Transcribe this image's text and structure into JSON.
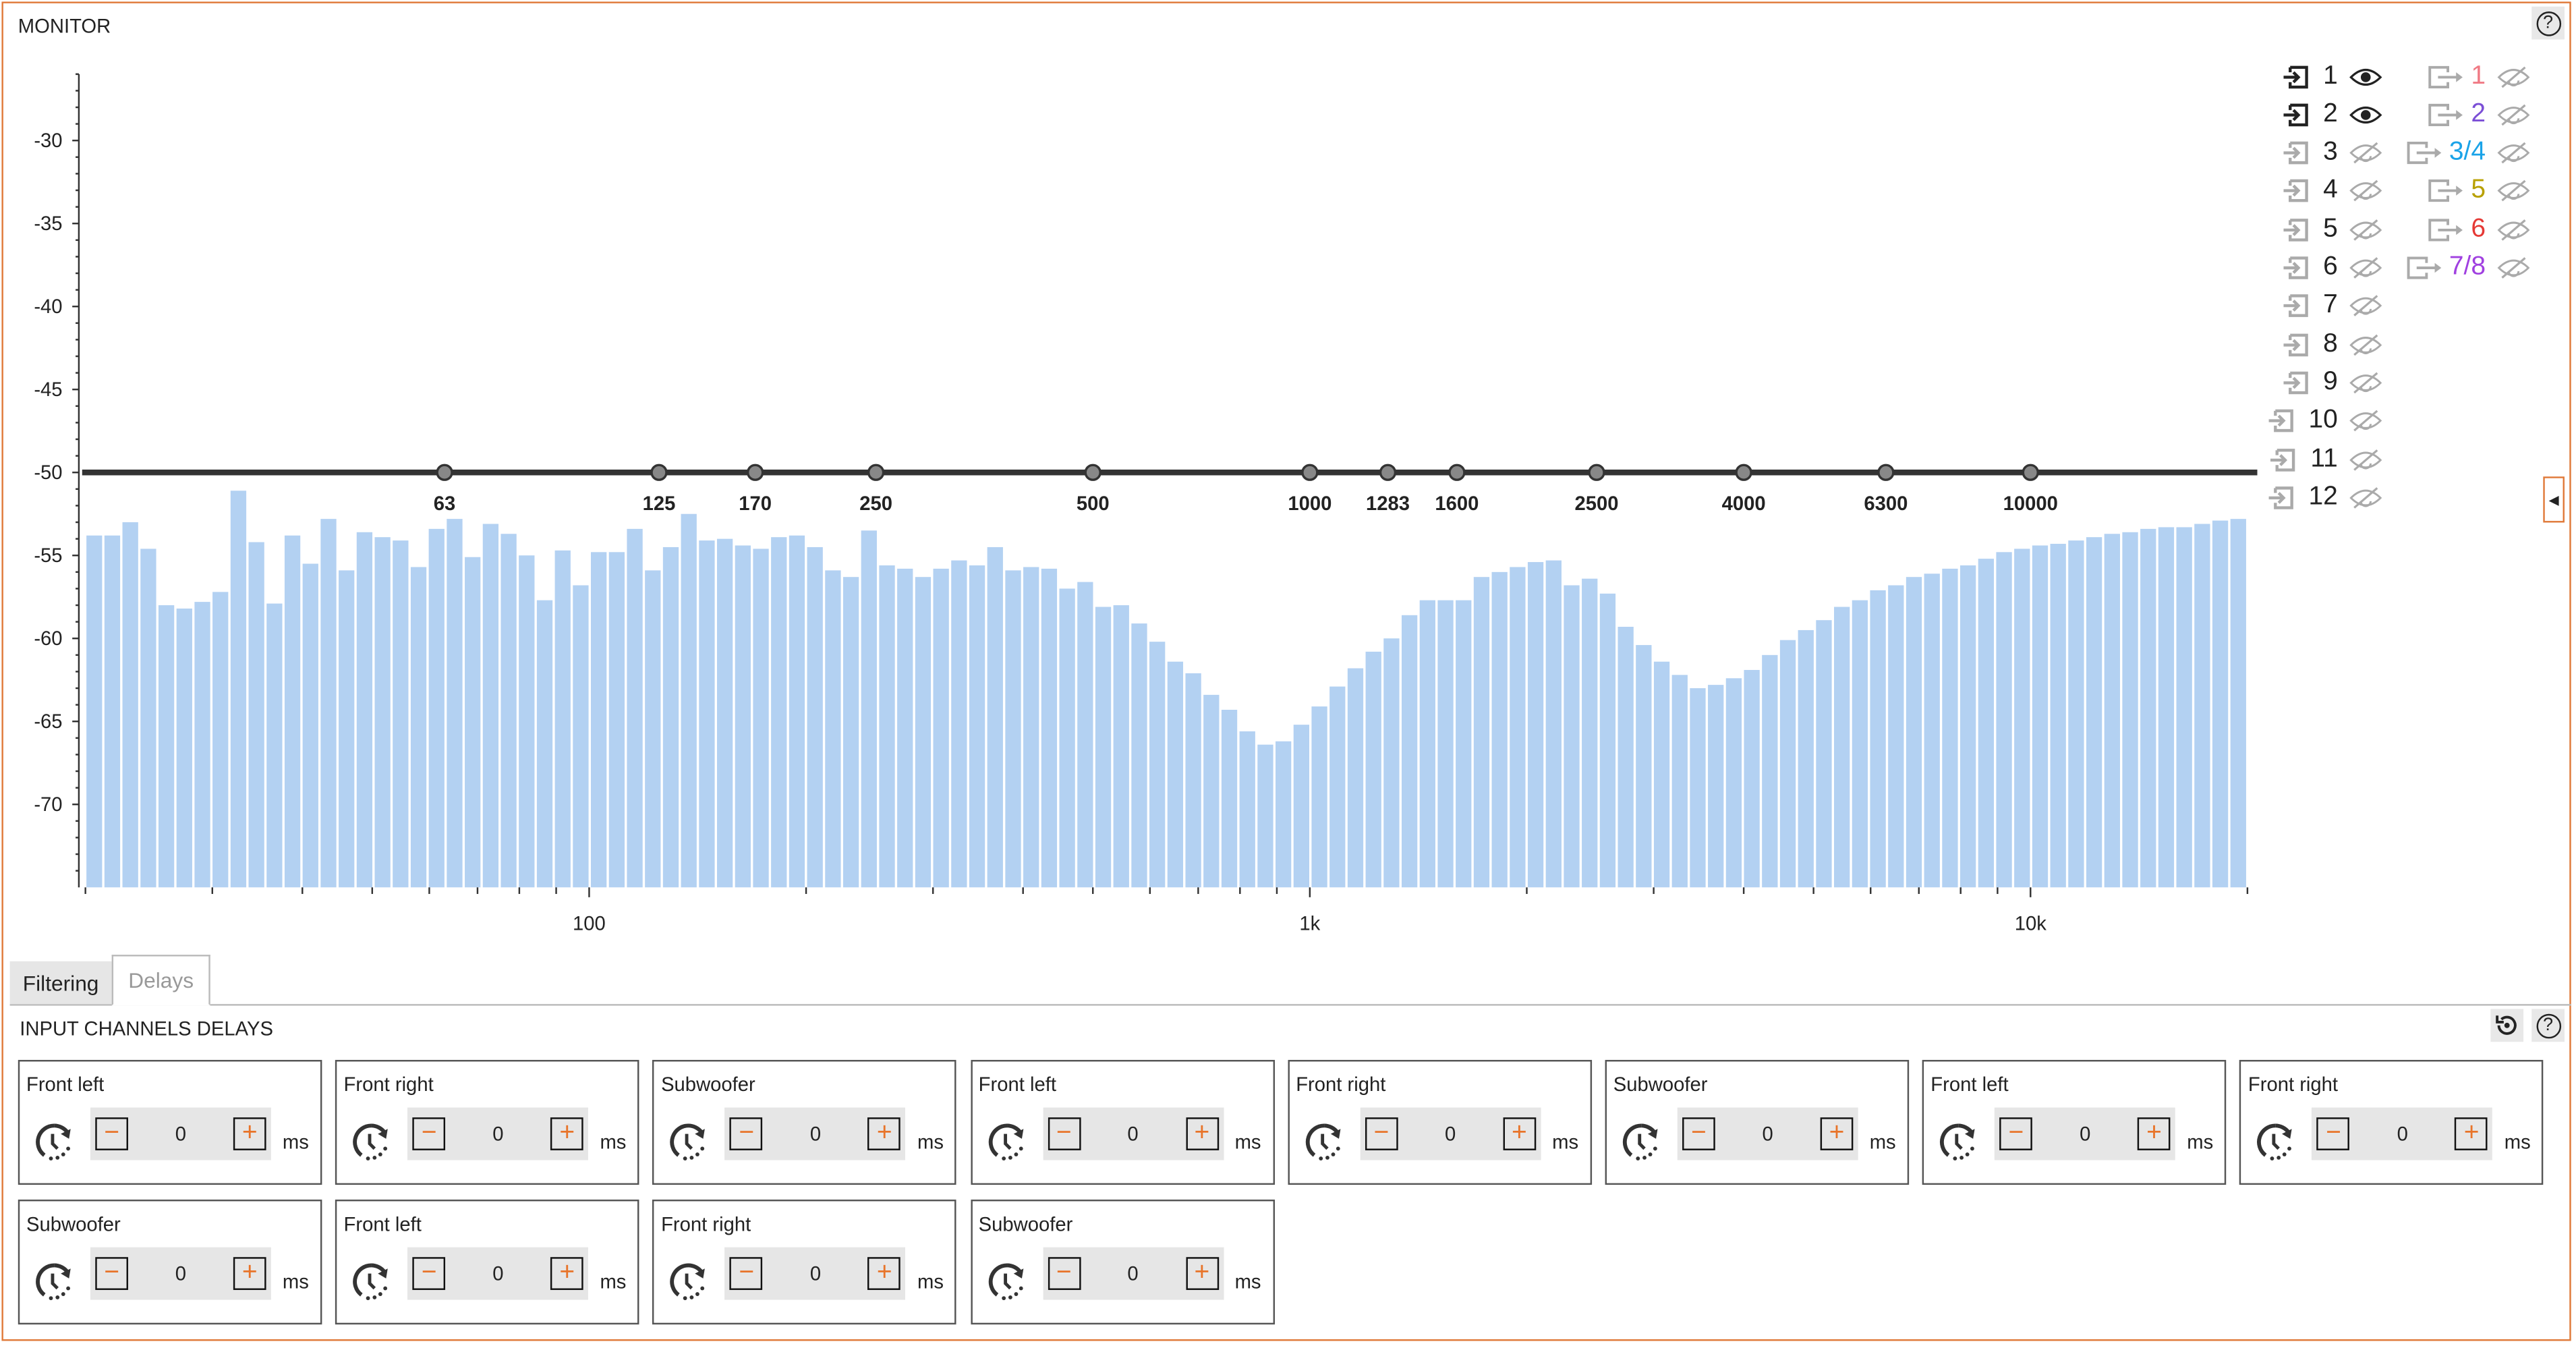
{
  "monitor": {
    "title": "MONITOR",
    "help_icon": "question-circle-icon"
  },
  "chart_data": {
    "type": "bar",
    "xscale": "log",
    "xlim": [
      20,
      20000
    ],
    "ylim": [
      -75,
      -25
    ],
    "y_ticks": [
      -30,
      -35,
      -40,
      -45,
      -50,
      -55,
      -60,
      -65,
      -70
    ],
    "x_tick_labels": [
      {
        "v": 100,
        "t": "100"
      },
      {
        "v": 1000,
        "t": "1k"
      },
      {
        "v": 10000,
        "t": "10k"
      }
    ],
    "bar_color": "#b3d1f2",
    "reference_level": -50,
    "filter_points": [
      63,
      125,
      170,
      250,
      500,
      1000,
      1283,
      1600,
      2500,
      4000,
      6300,
      10000
    ],
    "values": [
      -53.8,
      -53.8,
      -53.0,
      -54.6,
      -58.0,
      -58.2,
      -57.8,
      -57.2,
      -51.1,
      -54.2,
      -57.9,
      -53.8,
      -55.5,
      -52.8,
      -55.9,
      -53.6,
      -53.9,
      -54.1,
      -55.7,
      -53.4,
      -52.8,
      -55.1,
      -53.1,
      -53.7,
      -55.0,
      -57.7,
      -54.7,
      -56.8,
      -54.8,
      -54.8,
      -53.4,
      -55.9,
      -54.5,
      -52.5,
      -54.1,
      -54.0,
      -54.4,
      -54.6,
      -53.9,
      -53.8,
      -54.5,
      -55.9,
      -56.3,
      -53.5,
      -55.6,
      -55.8,
      -56.3,
      -55.8,
      -55.3,
      -55.6,
      -54.5,
      -55.9,
      -55.7,
      -55.8,
      -57.0,
      -56.6,
      -58.1,
      -58.0,
      -59.1,
      -60.2,
      -61.4,
      -62.1,
      -63.4,
      -64.3,
      -65.6,
      -66.4,
      -66.2,
      -65.2,
      -64.1,
      -62.9,
      -61.8,
      -60.8,
      -60.0,
      -58.6,
      -57.7,
      -57.7,
      -57.7,
      -56.3,
      -56.0,
      -55.7,
      -55.4,
      -55.3,
      -56.8,
      -56.4,
      -57.3,
      -59.3,
      -60.4,
      -61.4,
      -62.2,
      -63.0,
      -62.8,
      -62.4,
      -61.9,
      -61.0,
      -60.1,
      -59.5,
      -58.9,
      -58.1,
      -57.7,
      -57.1,
      -56.8,
      -56.3,
      -56.1,
      -55.8,
      -55.6,
      -55.2,
      -54.8,
      -54.6,
      -54.4,
      -54.3,
      -54.1,
      -53.9,
      -53.7,
      -53.6,
      -53.4,
      -53.3,
      -53.3,
      -53.1,
      -52.9,
      -52.8
    ]
  },
  "legend": {
    "inputs": [
      {
        "label": "1",
        "visible": true
      },
      {
        "label": "2",
        "visible": true
      },
      {
        "label": "3",
        "visible": false
      },
      {
        "label": "4",
        "visible": false
      },
      {
        "label": "5",
        "visible": false
      },
      {
        "label": "6",
        "visible": false
      },
      {
        "label": "7",
        "visible": false
      },
      {
        "label": "8",
        "visible": false
      },
      {
        "label": "9",
        "visible": false
      },
      {
        "label": "10",
        "visible": false
      },
      {
        "label": "11",
        "visible": false
      },
      {
        "label": "12",
        "visible": false
      }
    ],
    "outputs": [
      {
        "label": "1",
        "color": "#f07a85",
        "visible": false
      },
      {
        "label": "2",
        "color": "#7b4fd6",
        "visible": false
      },
      {
        "label": "3/4",
        "color": "#1aa3e8",
        "visible": false
      },
      {
        "label": "5",
        "color": "#b8a000",
        "visible": false
      },
      {
        "label": "6",
        "color": "#e53935",
        "visible": false
      },
      {
        "label": "7/8",
        "color": "#a040e0",
        "visible": false
      }
    ]
  },
  "tabs": [
    {
      "label": "Filtering"
    },
    {
      "label": "Delays"
    }
  ],
  "delays": {
    "title": "INPUT CHANNELS DELAYS",
    "unit": "ms",
    "channels": [
      {
        "name": "Front left",
        "value": "0"
      },
      {
        "name": "Front right",
        "value": "0"
      },
      {
        "name": "Subwoofer",
        "value": "0"
      },
      {
        "name": "Front left",
        "value": "0"
      },
      {
        "name": "Front right",
        "value": "0"
      },
      {
        "name": "Subwoofer",
        "value": "0"
      },
      {
        "name": "Front left",
        "value": "0"
      },
      {
        "name": "Front right",
        "value": "0"
      },
      {
        "name": "Subwoofer",
        "value": "0"
      },
      {
        "name": "Front left",
        "value": "0"
      },
      {
        "name": "Front right",
        "value": "0"
      },
      {
        "name": "Subwoofer",
        "value": "0"
      }
    ],
    "decrement": "−",
    "increment": "+"
  }
}
